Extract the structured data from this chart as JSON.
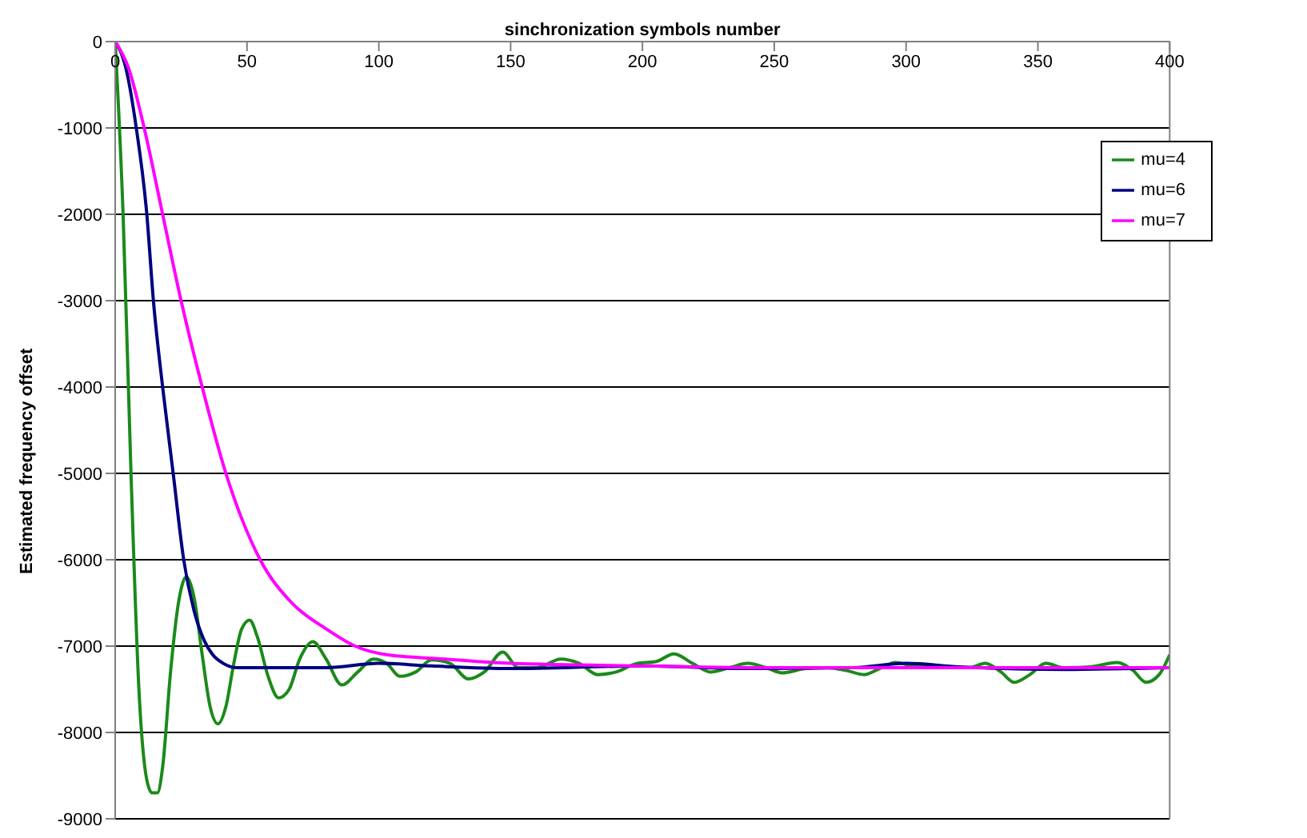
{
  "chart_data": {
    "type": "line",
    "xlabel": "sinchronization symbols number",
    "ylabel": "Estimated frequency offset",
    "xlim": [
      0,
      400
    ],
    "xticks": [
      0,
      50,
      100,
      150,
      200,
      250,
      300,
      350,
      400
    ],
    "ylim": [
      -9000,
      0
    ],
    "yticks": [
      0,
      -1000,
      -2000,
      -3000,
      -4000,
      -5000,
      -6000,
      -7000,
      -8000,
      -9000
    ],
    "grid": "y",
    "legend": "top right",
    "marker": "none",
    "line_style": "solid",
    "series": [
      {
        "name": "mu=4",
        "color": "#1a8a1a",
        "x": [
          0,
          3,
          6,
          9,
          12,
          14,
          16,
          18,
          21,
          24,
          27,
          30,
          33,
          36,
          39,
          42,
          45,
          48,
          51,
          54,
          58,
          62,
          66,
          70,
          75,
          80,
          86,
          92,
          98,
          103,
          108,
          114,
          120,
          127,
          134,
          140,
          147,
          153,
          160,
          169,
          176,
          183,
          190,
          198,
          205,
          212,
          219,
          226,
          233,
          240,
          247,
          253,
          262,
          270,
          277,
          284,
          290,
          296,
          303,
          310,
          318,
          324,
          330,
          336,
          341,
          347,
          353,
          360,
          370,
          380,
          386,
          391,
          396,
          400
        ],
        "values": [
          0,
          -2000,
          -5000,
          -7500,
          -8550,
          -8700,
          -8700,
          -8400,
          -7300,
          -6500,
          -6200,
          -6450,
          -7100,
          -7700,
          -7900,
          -7700,
          -7200,
          -6800,
          -6700,
          -6900,
          -7350,
          -7600,
          -7500,
          -7150,
          -6950,
          -7150,
          -7450,
          -7300,
          -7150,
          -7200,
          -7350,
          -7300,
          -7160,
          -7200,
          -7380,
          -7300,
          -7070,
          -7250,
          -7250,
          -7150,
          -7200,
          -7330,
          -7300,
          -7200,
          -7180,
          -7090,
          -7200,
          -7300,
          -7250,
          -7200,
          -7250,
          -7310,
          -7260,
          -7250,
          -7280,
          -7330,
          -7260,
          -7190,
          -7230,
          -7220,
          -7250,
          -7250,
          -7200,
          -7300,
          -7420,
          -7330,
          -7200,
          -7250,
          -7240,
          -7190,
          -7280,
          -7420,
          -7330,
          -7100
        ]
      },
      {
        "name": "mu=6",
        "color": "#000080",
        "x": [
          0,
          4,
          8,
          12,
          14.5,
          18,
          22,
          26,
          30,
          34,
          37,
          41,
          46,
          60,
          80,
          100,
          120,
          150,
          200,
          240,
          280,
          300,
          320,
          360,
          400
        ],
        "values": [
          0,
          -300,
          -1000,
          -2000,
          -3000,
          -4000,
          -5000,
          -6000,
          -6600,
          -6950,
          -7100,
          -7200,
          -7250,
          -7250,
          -7250,
          -7200,
          -7230,
          -7260,
          -7230,
          -7260,
          -7250,
          -7200,
          -7240,
          -7270,
          -7250
        ]
      },
      {
        "name": "mu=7",
        "color": "#ff00ff",
        "x": [
          0,
          5,
          11,
          18,
          25,
          33,
          42,
          55,
          67,
          80,
          91,
          103,
          125,
          150,
          200,
          250,
          300,
          350,
          400
        ],
        "values": [
          0,
          -300,
          -1000,
          -2000,
          -3000,
          -4000,
          -5000,
          -6000,
          -6500,
          -6800,
          -7000,
          -7100,
          -7150,
          -7200,
          -7230,
          -7250,
          -7250,
          -7250,
          -7250
        ]
      }
    ]
  }
}
